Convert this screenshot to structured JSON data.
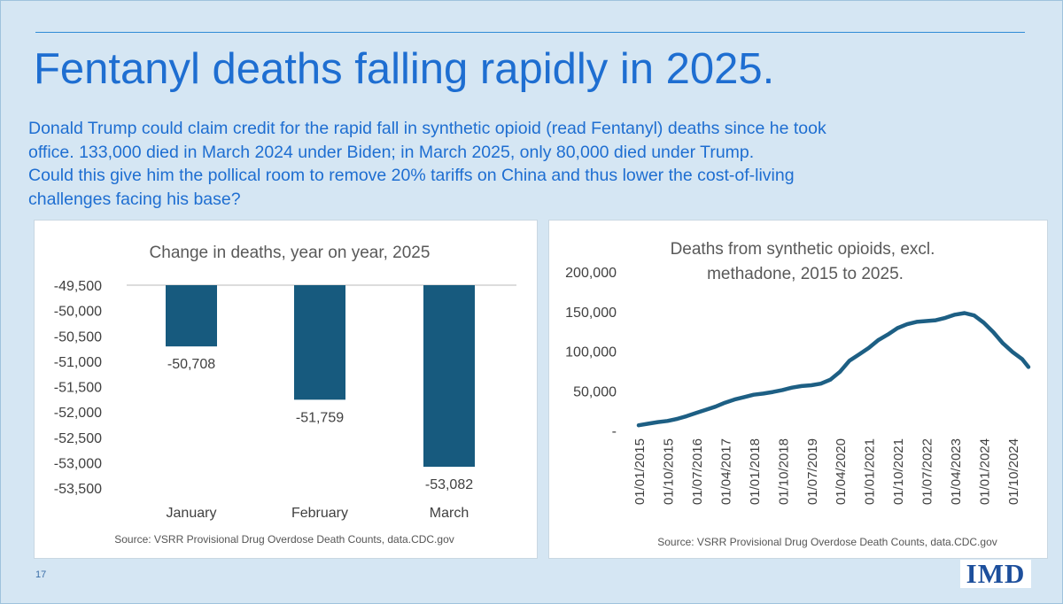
{
  "slide": {
    "title": "Fentanyl deaths falling rapidly in 2025.",
    "body_lines": [
      "Donald Trump could claim credit for the rapid fall in synthetic opioid (read Fentanyl) deaths since he took",
      "office. 133,000 died in March 2024 under Biden; in March 2025, only 80,000 died under Trump.",
      "Could this give him the pollical room to remove 20% tariffs on China and thus lower the cost-of-living",
      "challenges facing his base?"
    ],
    "page_number": "17",
    "logo_text": "IMD",
    "colors": {
      "title": "#1e6ed1",
      "background": "#d5e6f3",
      "bar": "#175a7e",
      "line": "#1d5f84"
    }
  },
  "chart_data": [
    {
      "type": "bar",
      "title": "Change in deaths, year on year, 2025",
      "categories": [
        "January",
        "February",
        "March"
      ],
      "values": [
        -50708,
        -51759,
        -53082
      ],
      "data_labels": [
        "-50,708",
        "-51,759",
        "-53,082"
      ],
      "ylim": [
        -53500,
        -49500
      ],
      "yticks": [
        -49500,
        -50000,
        -50500,
        -51000,
        -51500,
        -52000,
        -52500,
        -53000,
        -53500
      ],
      "ytick_labels": [
        "-49,500",
        "-50,000",
        "-50,500",
        "-51,000",
        "-51,500",
        "-52,000",
        "-52,500",
        "-53,000",
        "-53,500"
      ],
      "source": "Source: VSRR Provisional Drug Overdose Death Counts, data.CDC.gov",
      "grid": false
    },
    {
      "type": "line",
      "title_lines": [
        "Deaths from synthetic opioids, excl.",
        "methadone, 2015 to 2025."
      ],
      "ylim": [
        0,
        200000
      ],
      "yticks": [
        0,
        50000,
        100000,
        150000,
        200000
      ],
      "ytick_labels": [
        "-",
        "50,000",
        "100,000",
        "150,000",
        "200,000"
      ],
      "xtick_labels": [
        "01/01/2015",
        "01/10/2015",
        "01/07/2016",
        "01/04/2017",
        "01/01/2018",
        "01/10/2018",
        "01/07/2019",
        "01/04/2020",
        "01/01/2021",
        "01/10/2021",
        "01/07/2022",
        "01/04/2023",
        "01/01/2024",
        "01/10/2024"
      ],
      "x": [
        "2015-01",
        "2015-04",
        "2015-07",
        "2015-10",
        "2016-01",
        "2016-04",
        "2016-07",
        "2016-10",
        "2017-01",
        "2017-04",
        "2017-07",
        "2017-10",
        "2018-01",
        "2018-04",
        "2018-07",
        "2018-10",
        "2019-01",
        "2019-04",
        "2019-07",
        "2019-10",
        "2020-01",
        "2020-04",
        "2020-07",
        "2020-10",
        "2021-01",
        "2021-04",
        "2021-07",
        "2021-10",
        "2022-01",
        "2022-04",
        "2022-07",
        "2022-10",
        "2023-01",
        "2023-04",
        "2023-07",
        "2023-10",
        "2024-01",
        "2024-04",
        "2024-07",
        "2024-10",
        "2025-01",
        "2025-03"
      ],
      "values": [
        6500,
        8500,
        10500,
        12000,
        14500,
        18000,
        22000,
        26000,
        30000,
        35000,
        39000,
        42000,
        45000,
        46500,
        48500,
        51000,
        54000,
        56000,
        57000,
        59000,
        64000,
        74000,
        88000,
        96000,
        104000,
        114000,
        121000,
        129000,
        134000,
        137000,
        138000,
        139000,
        142000,
        146000,
        148000,
        145000,
        136000,
        124000,
        110000,
        99000,
        90000,
        80000
      ],
      "source": "Source: VSRR Provisional Drug Overdose Death Counts, data.CDC.gov",
      "grid": false
    }
  ]
}
